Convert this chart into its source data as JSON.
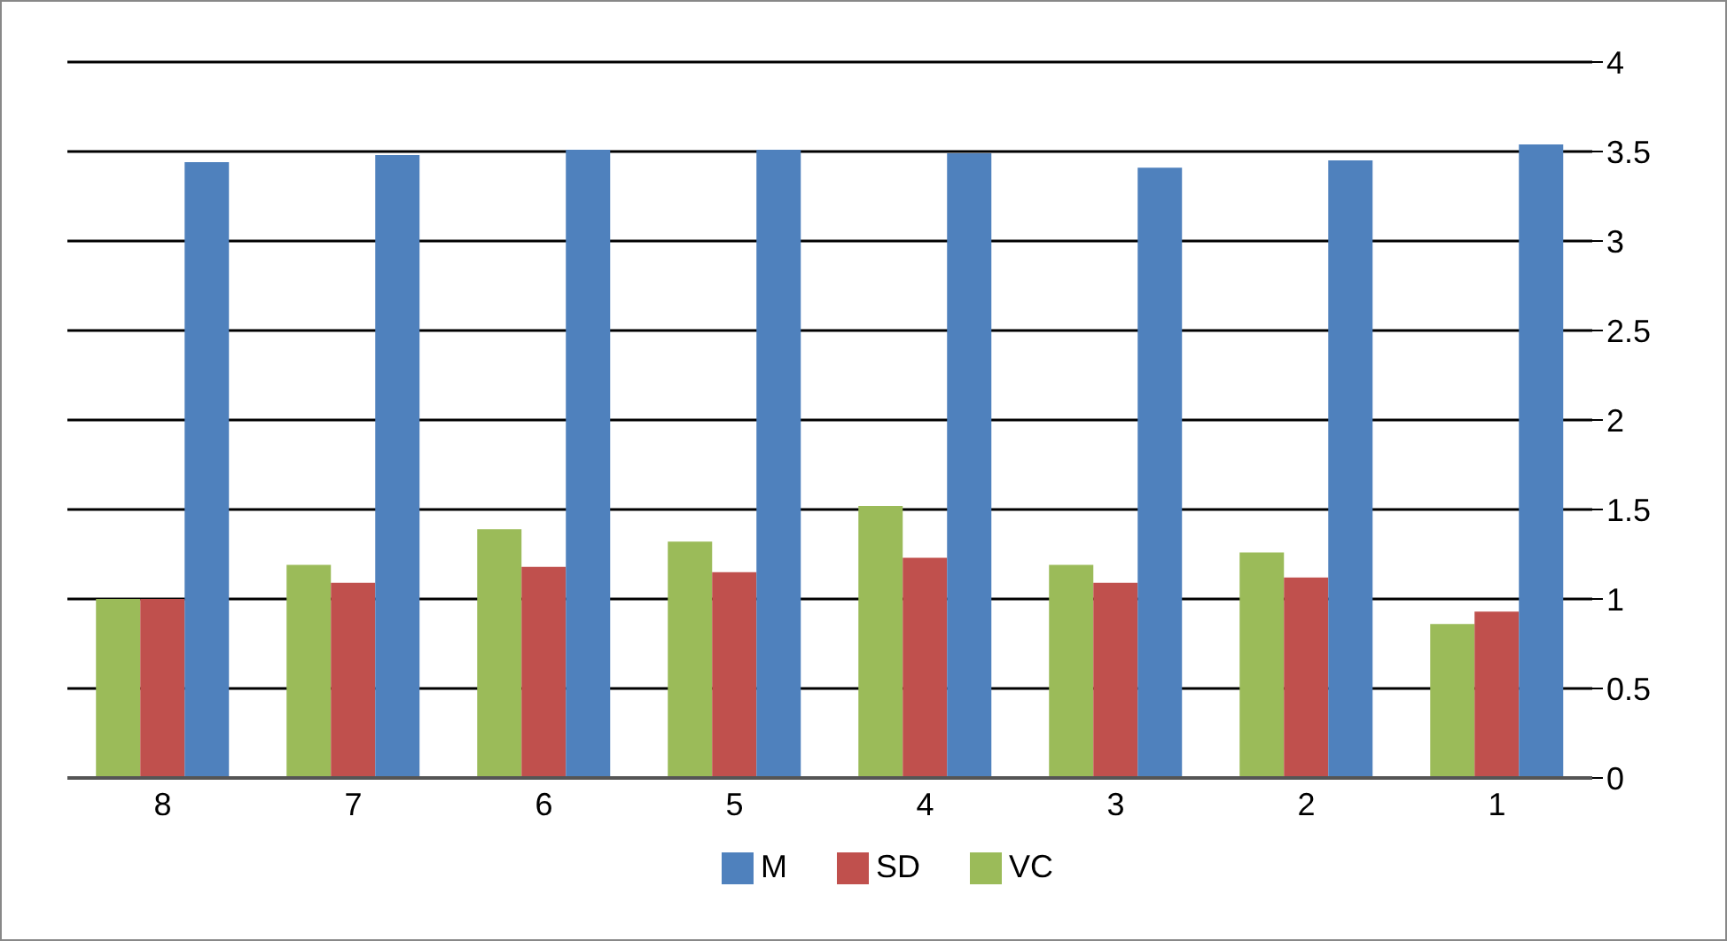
{
  "chart_data": {
    "type": "bar",
    "categories": [
      "8",
      "7",
      "6",
      "5",
      "4",
      "3",
      "2",
      "1"
    ],
    "series": [
      {
        "name": "M",
        "color": "#4f81bd",
        "values": [
          3.44,
          3.48,
          3.51,
          3.51,
          3.49,
          3.41,
          3.45,
          3.54
        ]
      },
      {
        "name": "SD",
        "color": "#c0504d",
        "values": [
          1.0,
          1.09,
          1.18,
          1.15,
          1.23,
          1.09,
          1.12,
          0.93
        ]
      },
      {
        "name": "VC",
        "color": "#9bbb59",
        "values": [
          1.0,
          1.19,
          1.39,
          1.32,
          1.52,
          1.19,
          1.26,
          0.86
        ]
      }
    ],
    "ylim": [
      0,
      4
    ],
    "yticks": [
      0,
      0.5,
      1,
      1.5,
      2,
      2.5,
      3,
      3.5,
      4
    ],
    "grid": "y",
    "legend": "bottom"
  }
}
